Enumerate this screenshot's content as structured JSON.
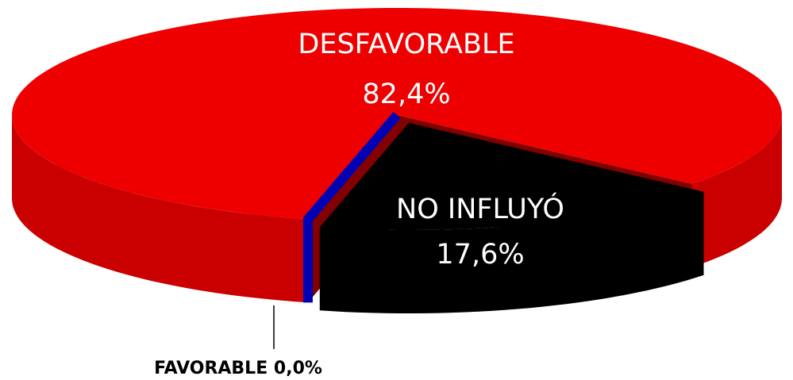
{
  "chart_data": {
    "type": "pie",
    "categories": [
      "NO INFLUYÓ",
      "FAVORABLE",
      "DESFAVORABLE"
    ],
    "values": [
      17.6,
      0.0,
      82.4
    ],
    "value_labels": [
      "17,6%",
      "0,0%",
      "82,4%"
    ],
    "colors": [
      "#000000",
      "#0000b4",
      "#ee0000"
    ]
  }
}
